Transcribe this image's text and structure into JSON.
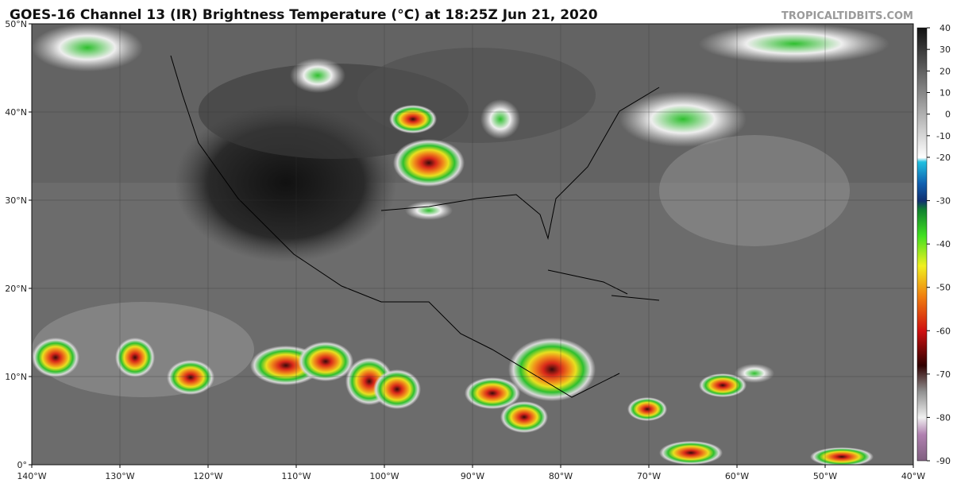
{
  "header": {
    "title": "GOES-16 Channel 13 (IR) Brightness Temperature (°C) at 18:25Z Jun 21, 2020",
    "credit": "TROPICALTIDBITS.COM"
  },
  "map": {
    "lat_ticks": [
      {
        "value": 50,
        "label": "50°N"
      },
      {
        "value": 40,
        "label": "40°N"
      },
      {
        "value": 30,
        "label": "30°N"
      },
      {
        "value": 20,
        "label": "20°N"
      },
      {
        "value": 10,
        "label": "10°N"
      },
      {
        "value": 0,
        "label": "0°"
      }
    ],
    "lon_ticks": [
      {
        "value": -140,
        "label": "140°W"
      },
      {
        "value": -130,
        "label": "130°W"
      },
      {
        "value": -120,
        "label": "120°W"
      },
      {
        "value": -110,
        "label": "110°W"
      },
      {
        "value": -100,
        "label": "100°W"
      },
      {
        "value": -90,
        "label": "90°W"
      },
      {
        "value": -80,
        "label": "80°W"
      },
      {
        "value": -70,
        "label": "70°W"
      },
      {
        "value": -60,
        "label": "60°W"
      },
      {
        "value": -50,
        "label": "50°W"
      },
      {
        "value": -40,
        "label": "40°W"
      }
    ]
  },
  "colorbar": {
    "ticks": [
      40,
      30,
      20,
      10,
      0,
      -10,
      -20,
      -30,
      -40,
      -50,
      -60,
      -70,
      -80,
      -90
    ]
  }
}
